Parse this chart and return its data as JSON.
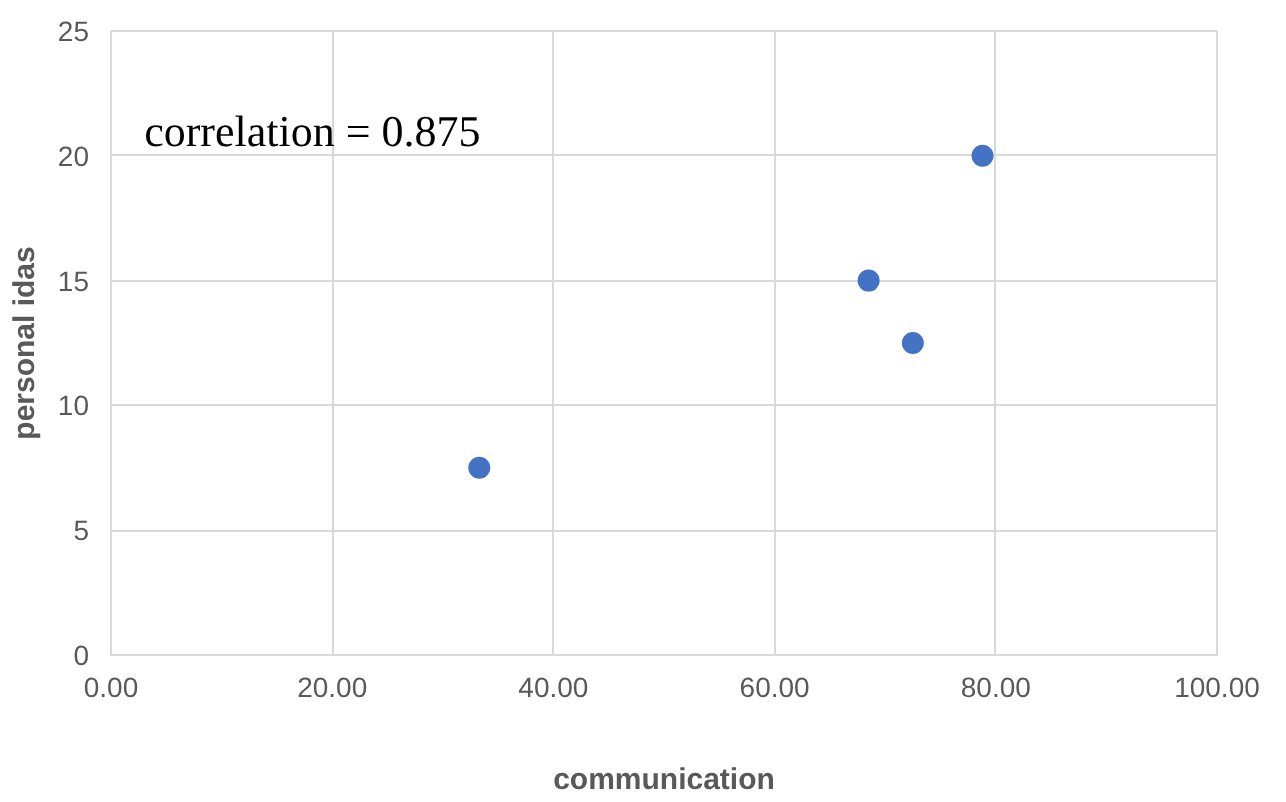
{
  "chart_data": {
    "type": "scatter",
    "xlabel": "communication",
    "ylabel": "personal idas",
    "x": [
      33.3,
      68.5,
      72.5,
      78.8
    ],
    "series": [
      {
        "color": "#4472c4",
        "values": [
          7.5,
          15,
          12.5,
          20
        ]
      }
    ],
    "xlim": [
      0,
      100
    ],
    "xticks": [
      {
        "value": 0,
        "label": "0.00"
      },
      {
        "value": 20,
        "label": "20.00"
      },
      {
        "value": 40,
        "label": "40.00"
      },
      {
        "value": 60,
        "label": "60.00"
      },
      {
        "value": 80,
        "label": "80.00"
      },
      {
        "value": 100,
        "label": "100.00"
      }
    ],
    "ylim": [
      0,
      25
    ],
    "yticks": [
      0,
      5,
      10,
      15,
      20,
      25
    ],
    "annotations": [
      "correlation = 0.875"
    ],
    "grid": true,
    "marker": "circle"
  }
}
